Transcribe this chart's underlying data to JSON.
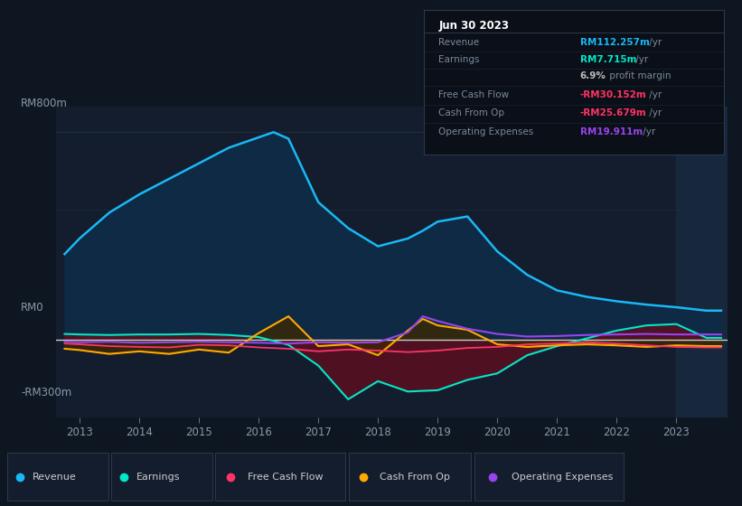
{
  "bg_color": "#0e1621",
  "plot_bg_color": "#131d2e",
  "grid_color": "#1e2d3d",
  "zero_line_color": "#cccccc",
  "y_label_800": "RM800m",
  "y_label_0": "RM0",
  "y_label_neg300": "-RM300m",
  "ylim": [
    -300,
    900
  ],
  "xlim_start": 2012.6,
  "xlim_end": 2023.85,
  "xticks": [
    2013,
    2014,
    2015,
    2016,
    2017,
    2018,
    2019,
    2020,
    2021,
    2022,
    2023
  ],
  "revenue_color": "#1ab8f5",
  "revenue_fill": "#0e2a45",
  "earnings_color": "#00e8c8",
  "earnings_fill_neg": "#5a1020",
  "fcf_color": "#ff3366",
  "cashfromop_color": "#ffaa00",
  "cashfromop_fill_pos": "#3d2800",
  "cashfromop_fill_neg": "#3d2800",
  "opex_color": "#9944ee",
  "legend_items": [
    "Revenue",
    "Earnings",
    "Free Cash Flow",
    "Cash From Op",
    "Operating Expenses"
  ],
  "legend_colors": [
    "#1ab8f5",
    "#00e8c8",
    "#ff3366",
    "#ffaa00",
    "#9944ee"
  ],
  "infobox_date": "Jun 30 2023",
  "infobox_rows": [
    {
      "label": "Revenue",
      "value": "RM112.257m",
      "unit": " /yr",
      "color": "#1ab8f5"
    },
    {
      "label": "Earnings",
      "value": "RM7.715m",
      "unit": " /yr",
      "color": "#00e8c8"
    },
    {
      "label": "",
      "value": "6.9%",
      "unit": " profit margin",
      "color": "#bbbbbb"
    },
    {
      "label": "Free Cash Flow",
      "value": "-RM30.152m",
      "unit": " /yr",
      "color": "#ff3366"
    },
    {
      "label": "Cash From Op",
      "value": "-RM25.679m",
      "unit": " /yr",
      "color": "#ff3366"
    },
    {
      "label": "Operating Expenses",
      "value": "RM19.911m",
      "unit": " /yr",
      "color": "#9944ee"
    }
  ],
  "revenue_x": [
    2012.75,
    2013.0,
    2013.5,
    2014.0,
    2014.5,
    2015.0,
    2015.5,
    2016.0,
    2016.25,
    2016.5,
    2017.0,
    2017.5,
    2018.0,
    2018.5,
    2018.75,
    2019.0,
    2019.5,
    2020.0,
    2020.5,
    2021.0,
    2021.5,
    2022.0,
    2022.5,
    2023.0,
    2023.5,
    2023.75
  ],
  "revenue_y": [
    330,
    390,
    490,
    560,
    620,
    680,
    740,
    780,
    800,
    775,
    530,
    430,
    360,
    390,
    420,
    455,
    475,
    340,
    250,
    190,
    165,
    148,
    135,
    125,
    112,
    112
  ],
  "earnings_x": [
    2012.75,
    2013.0,
    2013.5,
    2014.0,
    2014.5,
    2015.0,
    2015.5,
    2016.0,
    2016.5,
    2017.0,
    2017.5,
    2018.0,
    2018.5,
    2019.0,
    2019.5,
    2020.0,
    2020.5,
    2021.0,
    2021.5,
    2022.0,
    2022.5,
    2023.0,
    2023.5,
    2023.75
  ],
  "earnings_y": [
    22,
    20,
    18,
    20,
    20,
    22,
    18,
    10,
    -20,
    -100,
    -230,
    -160,
    -200,
    -195,
    -155,
    -130,
    -60,
    -25,
    5,
    35,
    55,
    60,
    7,
    7
  ],
  "fcf_x": [
    2012.75,
    2013.0,
    2013.5,
    2014.0,
    2014.5,
    2015.0,
    2015.5,
    2016.0,
    2016.5,
    2017.0,
    2017.5,
    2018.0,
    2018.5,
    2019.0,
    2019.5,
    2020.0,
    2020.5,
    2021.0,
    2021.5,
    2022.0,
    2022.5,
    2023.0,
    2023.5,
    2023.75
  ],
  "fcf_y": [
    -15,
    -18,
    -25,
    -28,
    -30,
    -20,
    -22,
    -30,
    -35,
    -45,
    -38,
    -42,
    -48,
    -42,
    -32,
    -28,
    -18,
    -15,
    -10,
    -15,
    -22,
    -28,
    -30,
    -30
  ],
  "cop_x": [
    2012.75,
    2013.0,
    2013.5,
    2014.0,
    2014.5,
    2015.0,
    2015.5,
    2016.0,
    2016.5,
    2017.0,
    2017.5,
    2018.0,
    2018.5,
    2018.75,
    2019.0,
    2019.5,
    2020.0,
    2020.5,
    2021.0,
    2021.5,
    2022.0,
    2022.5,
    2023.0,
    2023.5,
    2023.75
  ],
  "cop_y": [
    -35,
    -40,
    -55,
    -45,
    -55,
    -38,
    -50,
    25,
    90,
    -25,
    -18,
    -60,
    35,
    80,
    55,
    38,
    -18,
    -28,
    -22,
    -18,
    -22,
    -28,
    -22,
    -25,
    -25
  ],
  "opex_x": [
    2012.75,
    2013.0,
    2013.5,
    2014.0,
    2014.5,
    2015.0,
    2015.5,
    2016.0,
    2016.5,
    2017.0,
    2017.5,
    2018.0,
    2018.5,
    2018.75,
    2019.0,
    2019.5,
    2020.0,
    2020.5,
    2021.0,
    2021.5,
    2022.0,
    2022.5,
    2023.0,
    2023.5,
    2023.75
  ],
  "opex_y": [
    -8,
    -10,
    -8,
    -12,
    -10,
    -8,
    -10,
    -12,
    -15,
    -10,
    -12,
    -10,
    28,
    90,
    72,
    42,
    22,
    12,
    14,
    18,
    20,
    22,
    20,
    20,
    20
  ]
}
